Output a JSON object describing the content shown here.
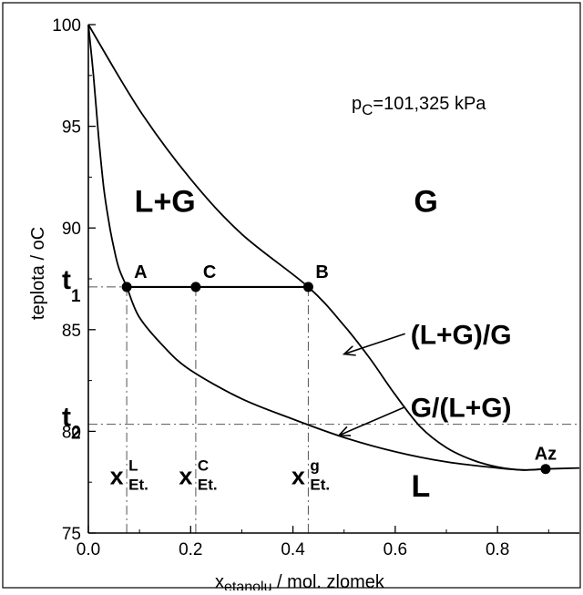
{
  "chart_data": {
    "type": "line",
    "title": "",
    "annotation_pressure": {
      "symbol": "p",
      "subscript": "C",
      "value": "=101,325 kPa"
    },
    "xlabel": {
      "symbol": "x",
      "subscript": "etanolu",
      "rest": " / mol. zlomek"
    },
    "ylabel": "teplota / oC",
    "xlim": [
      0.0,
      0.96
    ],
    "ylim": [
      75,
      100
    ],
    "xticks": [
      "0.0",
      "0.2",
      "0.4",
      "0.6",
      "0.8"
    ],
    "xtick_values": [
      0.0,
      0.2,
      0.4,
      0.6,
      0.8
    ],
    "yticks": [
      "75",
      "80",
      "85",
      "90",
      "95",
      "100"
    ],
    "ytick_values": [
      75,
      80,
      85,
      90,
      95,
      100
    ],
    "series": [
      {
        "points": [
          [
            0.0,
            100.0
          ],
          [
            0.01,
            97.5
          ],
          [
            0.02,
            94.5
          ],
          [
            0.03,
            92.0
          ],
          [
            0.04,
            90.3
          ],
          [
            0.05,
            89.0
          ],
          [
            0.06,
            88.0
          ],
          [
            0.075,
            87.1
          ],
          [
            0.1,
            85.6
          ],
          [
            0.15,
            84.1
          ],
          [
            0.2,
            83.0
          ],
          [
            0.3,
            81.6
          ],
          [
            0.4,
            80.6
          ],
          [
            0.5,
            79.7
          ],
          [
            0.6,
            79.0
          ],
          [
            0.7,
            78.5
          ],
          [
            0.8,
            78.2
          ],
          [
            0.85,
            78.1
          ],
          [
            0.894,
            78.15
          ],
          [
            0.96,
            78.2
          ]
        ]
      },
      {
        "points": [
          [
            0.0,
            100.0
          ],
          [
            0.1,
            95.8
          ],
          [
            0.2,
            92.4
          ],
          [
            0.3,
            89.7
          ],
          [
            0.43,
            87.1
          ],
          [
            0.5,
            85.2
          ],
          [
            0.55,
            83.6
          ],
          [
            0.6,
            81.8
          ],
          [
            0.65,
            80.2
          ],
          [
            0.7,
            79.2
          ],
          [
            0.75,
            78.6
          ],
          [
            0.8,
            78.25
          ],
          [
            0.85,
            78.1
          ],
          [
            0.894,
            78.15
          ]
        ]
      }
    ],
    "tie_line": {
      "y": 87.1,
      "points": [
        {
          "label": "A",
          "x": 0.075
        },
        {
          "label": "C",
          "x": 0.21
        },
        {
          "label": "B",
          "x": 0.43
        }
      ]
    },
    "guide_t2": {
      "y": 80.35,
      "x_end": 0.96
    },
    "azeotrope": {
      "label": "Az",
      "x": 0.894,
      "y": 78.15
    },
    "t_markers": [
      {
        "letter": "t",
        "sub": "1",
        "y": 87.1
      },
      {
        "letter": "t",
        "sub": "2",
        "y": 80.35
      }
    ],
    "x_markers": [
      {
        "x": 0.075,
        "sup": "L",
        "sub": "Et."
      },
      {
        "x": 0.21,
        "sup": "C",
        "sub": "Et."
      },
      {
        "x": 0.43,
        "sup": "g",
        "sub": "Et."
      }
    ],
    "x_marker_symbol": "x",
    "regions": [
      {
        "label": "L+G",
        "x": 0.15,
        "y": 90.8
      },
      {
        "label": "G",
        "x": 0.66,
        "y": 90.8
      },
      {
        "label": "L",
        "x": 0.65,
        "y": 76.8
      }
    ],
    "curve_labels": [
      {
        "label": "(L+G)/G",
        "x": 0.63,
        "y": 84.8,
        "arrow_to": [
          0.5,
          83.8
        ]
      },
      {
        "label": "G/(L+G)",
        "x": 0.63,
        "y": 81.2,
        "arrow_to": [
          0.49,
          79.8
        ]
      }
    ]
  }
}
